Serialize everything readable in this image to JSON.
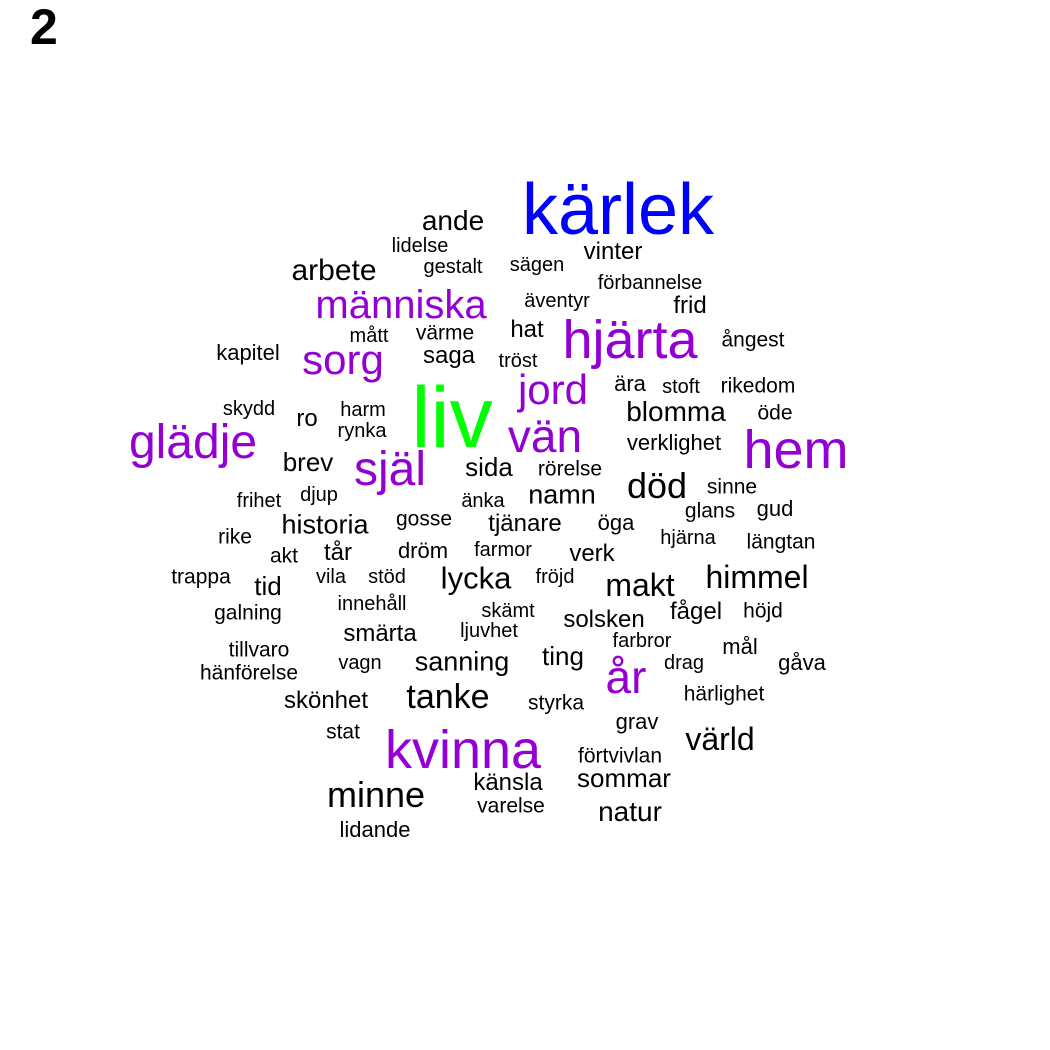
{
  "panel_label": "2",
  "colors": {
    "common": "#000000",
    "frequent": "#9400D3",
    "very_frequent": "#0000FF",
    "most_frequent": "#00FF00"
  },
  "words": [
    {
      "text": "liv",
      "tier": "most_frequent",
      "weight": 1.0
    },
    {
      "text": "kärlek",
      "tier": "very_frequent",
      "weight": 0.82
    },
    {
      "text": "hjärta",
      "tier": "frequent",
      "weight": 0.6
    },
    {
      "text": "kvinna",
      "tier": "frequent",
      "weight": 0.6
    },
    {
      "text": "hem",
      "tier": "frequent",
      "weight": 0.6
    },
    {
      "text": "glädje",
      "tier": "frequent",
      "weight": 0.55
    },
    {
      "text": "själ",
      "tier": "frequent",
      "weight": 0.55
    },
    {
      "text": "vän",
      "tier": "frequent",
      "weight": 0.52
    },
    {
      "text": "år",
      "tier": "frequent",
      "weight": 0.52
    },
    {
      "text": "jord",
      "tier": "frequent",
      "weight": 0.48
    },
    {
      "text": "sorg",
      "tier": "frequent",
      "weight": 0.48
    },
    {
      "text": "människa",
      "tier": "frequent",
      "weight": 0.45
    },
    {
      "text": "död",
      "tier": "common",
      "weight": 0.38
    },
    {
      "text": "minne",
      "tier": "common",
      "weight": 0.38
    },
    {
      "text": "tanke",
      "tier": "common",
      "weight": 0.36
    },
    {
      "text": "makt",
      "tier": "common",
      "weight": 0.35
    },
    {
      "text": "värld",
      "tier": "common",
      "weight": 0.34
    },
    {
      "text": "himmel",
      "tier": "common",
      "weight": 0.34
    },
    {
      "text": "lycka",
      "tier": "common",
      "weight": 0.33
    },
    {
      "text": "arbete",
      "tier": "common",
      "weight": 0.32
    },
    {
      "text": "ande",
      "tier": "common",
      "weight": 0.3
    },
    {
      "text": "blomma",
      "tier": "common",
      "weight": 0.3
    },
    {
      "text": "natur",
      "tier": "common",
      "weight": 0.3
    },
    {
      "text": "namn",
      "tier": "common",
      "weight": 0.28
    },
    {
      "text": "historia",
      "tier": "common",
      "weight": 0.28
    },
    {
      "text": "sanning",
      "tier": "common",
      "weight": 0.28
    },
    {
      "text": "sommar",
      "tier": "common",
      "weight": 0.27
    },
    {
      "text": "sida",
      "tier": "common",
      "weight": 0.27
    },
    {
      "text": "brev",
      "tier": "common",
      "weight": 0.27
    },
    {
      "text": "ting",
      "tier": "common",
      "weight": 0.27
    },
    {
      "text": "tid",
      "tier": "common",
      "weight": 0.27
    },
    {
      "text": "smärta",
      "tier": "common",
      "weight": 0.25
    },
    {
      "text": "saga",
      "tier": "common",
      "weight": 0.25
    },
    {
      "text": "hat",
      "tier": "common",
      "weight": 0.25
    },
    {
      "text": "känsla",
      "tier": "common",
      "weight": 0.25
    },
    {
      "text": "skönhet",
      "tier": "common",
      "weight": 0.25
    },
    {
      "text": "tjänare",
      "tier": "common",
      "weight": 0.24
    },
    {
      "text": "tår",
      "tier": "common",
      "weight": 0.24
    },
    {
      "text": "frid",
      "tier": "common",
      "weight": 0.24
    },
    {
      "text": "verk",
      "tier": "common",
      "weight": 0.24
    },
    {
      "text": "fågel",
      "tier": "common",
      "weight": 0.24
    },
    {
      "text": "solsken",
      "tier": "common",
      "weight": 0.24
    },
    {
      "text": "vinter",
      "tier": "common",
      "weight": 0.24
    },
    {
      "text": "ro",
      "tier": "common",
      "weight": 0.24
    },
    {
      "text": "verklighet",
      "tier": "common",
      "weight": 0.22
    },
    {
      "text": "lidande",
      "tier": "common",
      "weight": 0.22
    },
    {
      "text": "kapitel",
      "tier": "common",
      "weight": 0.22
    },
    {
      "text": "mål",
      "tier": "common",
      "weight": 0.22
    },
    {
      "text": "gud",
      "tier": "common",
      "weight": 0.22
    },
    {
      "text": "ära",
      "tier": "common",
      "weight": 0.22
    },
    {
      "text": "grav",
      "tier": "common",
      "weight": 0.22
    },
    {
      "text": "öga",
      "tier": "common",
      "weight": 0.22
    },
    {
      "text": "dröm",
      "tier": "common",
      "weight": 0.22
    },
    {
      "text": "gåva",
      "tier": "common",
      "weight": 0.22
    },
    {
      "text": "trappa",
      "tier": "common",
      "weight": 0.2
    },
    {
      "text": "akt",
      "tier": "common",
      "weight": 0.2
    },
    {
      "text": "ångest",
      "tier": "common",
      "weight": 0.2
    },
    {
      "text": "rike",
      "tier": "common",
      "weight": 0.2
    },
    {
      "text": "varelse",
      "tier": "common",
      "weight": 0.2
    },
    {
      "text": "stat",
      "tier": "common",
      "weight": 0.2
    },
    {
      "text": "höjd",
      "tier": "common",
      "weight": 0.2
    },
    {
      "text": "galning",
      "tier": "common",
      "weight": 0.2
    },
    {
      "text": "hänförelse",
      "tier": "common",
      "weight": 0.2
    },
    {
      "text": "glans",
      "tier": "common",
      "weight": 0.2
    },
    {
      "text": "styrka",
      "tier": "common",
      "weight": 0.2
    },
    {
      "text": "värme",
      "tier": "common",
      "weight": 0.2
    },
    {
      "text": "öde",
      "tier": "common",
      "weight": 0.2
    },
    {
      "text": "sinne",
      "tier": "common",
      "weight": 0.2
    },
    {
      "text": "härlighet",
      "tier": "common",
      "weight": 0.2
    },
    {
      "text": "längtan",
      "tier": "common",
      "weight": 0.2
    },
    {
      "text": "gosse",
      "tier": "common",
      "weight": 0.2
    },
    {
      "text": "rikedom",
      "tier": "common",
      "weight": 0.2
    },
    {
      "text": "tillvaro",
      "tier": "common",
      "weight": 0.2
    },
    {
      "text": "rörelse",
      "tier": "common",
      "weight": 0.2
    },
    {
      "text": "förtvivlan",
      "tier": "common",
      "weight": 0.2
    },
    {
      "text": "vagn",
      "tier": "common",
      "weight": 0.19
    },
    {
      "text": "sägen",
      "tier": "common",
      "weight": 0.19
    },
    {
      "text": "frihet",
      "tier": "common",
      "weight": 0.19
    },
    {
      "text": "farbror",
      "tier": "common",
      "weight": 0.19
    },
    {
      "text": "gestalt",
      "tier": "common",
      "weight": 0.19
    },
    {
      "text": "stoft",
      "tier": "common",
      "weight": 0.19
    },
    {
      "text": "skydd",
      "tier": "common",
      "weight": 0.19
    },
    {
      "text": "lidelse",
      "tier": "common",
      "weight": 0.19
    },
    {
      "text": "förbannelse",
      "tier": "common",
      "weight": 0.19
    },
    {
      "text": "äventyr",
      "tier": "common",
      "weight": 0.19
    },
    {
      "text": "mått",
      "tier": "common",
      "weight": 0.19
    },
    {
      "text": "tröst",
      "tier": "common",
      "weight": 0.19
    },
    {
      "text": "harm",
      "tier": "common",
      "weight": 0.19
    },
    {
      "text": "rynka",
      "tier": "common",
      "weight": 0.19
    },
    {
      "text": "djup",
      "tier": "common",
      "weight": 0.19
    },
    {
      "text": "änka",
      "tier": "common",
      "weight": 0.19
    },
    {
      "text": "hjärna",
      "tier": "common",
      "weight": 0.19
    },
    {
      "text": "farmor",
      "tier": "common",
      "weight": 0.19
    },
    {
      "text": "vila",
      "tier": "common",
      "weight": 0.19
    },
    {
      "text": "stöd",
      "tier": "common",
      "weight": 0.19
    },
    {
      "text": "fröjd",
      "tier": "common",
      "weight": 0.19
    },
    {
      "text": "innehåll",
      "tier": "common",
      "weight": 0.19
    },
    {
      "text": "skämt",
      "tier": "common",
      "weight": 0.19
    },
    {
      "text": "ljuvhet",
      "tier": "common",
      "weight": 0.19
    },
    {
      "text": "drag",
      "tier": "common",
      "weight": 0.19
    }
  ]
}
